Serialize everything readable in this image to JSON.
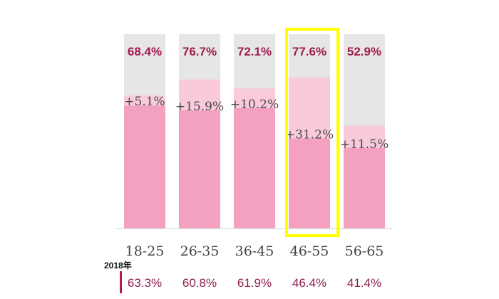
{
  "chart_data": {
    "type": "bar",
    "categories": [
      "18-25",
      "26-35",
      "36-45",
      "46-55",
      "56-65"
    ],
    "series": [
      {
        "name": "2018年",
        "values": [
          63.3,
          60.8,
          61.9,
          46.4,
          41.4
        ]
      },
      {
        "values": [
          5.1,
          15.9,
          10.2,
          31.2,
          11.5
        ]
      }
    ],
    "top_labels": [
      "68.4%",
      "76.7%",
      "72.1%",
      "77.6%",
      "52.9%"
    ],
    "delta_labels": [
      "+5.1%",
      "+15.9%",
      "+10.2%",
      "+31.2%",
      "+11.5%"
    ],
    "base_labels": [
      "63.3%",
      "60.8%",
      "61.9%",
      "46.4%",
      "41.4%"
    ],
    "base_row_label": "2018年",
    "highlight_category": "46-55",
    "ylim": [
      0,
      100
    ],
    "colors": {
      "base": "#f4a1c1",
      "increase": "#f8cadc",
      "background": "#e6e6e6",
      "highlight": "#ffff00",
      "top_text": "#a01c4e",
      "base_text": "#8e1f4f",
      "marker": "#b0195a"
    }
  }
}
